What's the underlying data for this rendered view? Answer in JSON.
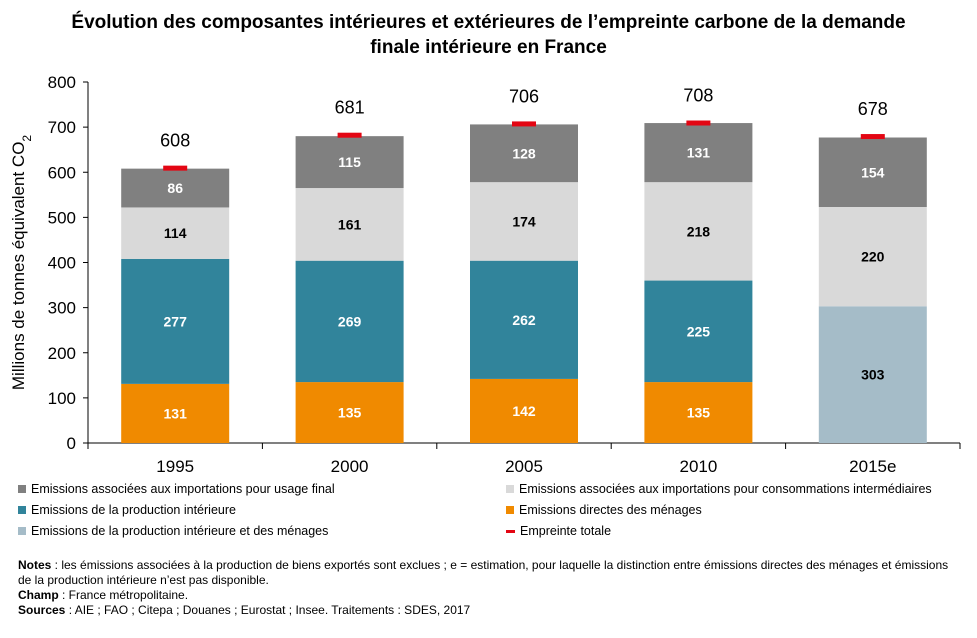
{
  "title_line1": "Évolution des composantes intérieures et extérieures de l’empreinte carbone de la demande",
  "title_line2": "finale intérieure en France",
  "chart_data": {
    "type": "bar",
    "stacked": true,
    "categories": [
      "1995",
      "2000",
      "2005",
      "2010",
      "2015e"
    ],
    "series": [
      {
        "name": "Emissions directes des ménages",
        "color": "#F08A00",
        "values": [
          131,
          135,
          142,
          135,
          null
        ]
      },
      {
        "name": "Emissions de la production intérieure",
        "color": "#31849B",
        "values": [
          277,
          269,
          262,
          225,
          null
        ]
      },
      {
        "name": "Emissions de la production intérieure et des ménages",
        "color": "#A5BCC8",
        "values": [
          null,
          null,
          null,
          null,
          303
        ]
      },
      {
        "name": "Emissions associées aux importations pour consommations intermédiaires",
        "color": "#D9D9D9",
        "values": [
          114,
          161,
          174,
          218,
          220
        ]
      },
      {
        "name": "Emissions associées aux importations pour usage final",
        "color": "#808080",
        "values": [
          86,
          115,
          128,
          131,
          154
        ]
      }
    ],
    "total": {
      "name": "Empreinte totale",
      "color": "#E30613",
      "values": [
        608,
        681,
        706,
        708,
        678
      ]
    },
    "ylabel": "Millions de tonnes équivalent CO",
    "ylabel_sub": "2",
    "ylim": [
      0,
      800
    ],
    "yticks": [
      0,
      100,
      200,
      300,
      400,
      500,
      600,
      700,
      800
    ],
    "grid": false,
    "legend_position": "bottom"
  },
  "legend": [
    {
      "label": "Emissions associées aux importations pour usage final",
      "color": "#808080",
      "kind": "box"
    },
    {
      "label": "Emissions associées aux importations pour consommations intermédiaires",
      "color": "#D9D9D9",
      "kind": "box"
    },
    {
      "label": "Emissions de la production intérieure",
      "color": "#31849B",
      "kind": "box"
    },
    {
      "label": "Emissions directes des ménages",
      "color": "#F08A00",
      "kind": "box"
    },
    {
      "label": "Emissions de la production intérieure et des ménages",
      "color": "#A5BCC8",
      "kind": "box"
    },
    {
      "label": "Empreinte totale",
      "color": "#E30613",
      "kind": "line"
    }
  ],
  "notes": {
    "notes_label": "Notes",
    "notes_text": " : les émissions associées à la production de biens exportés sont exclues ; e = estimation, pour laquelle la distinction entre émissions directes des ménages et émissions de la production intérieure n’est pas disponible.",
    "champ_label": "Champ",
    "champ_text": " : France métropolitaine.",
    "sources_label": "Sources",
    "sources_text": " : AIE ; FAO ; Citepa ; Douanes ; Eurostat ; Insee. Traitements : SDES, 2017"
  }
}
